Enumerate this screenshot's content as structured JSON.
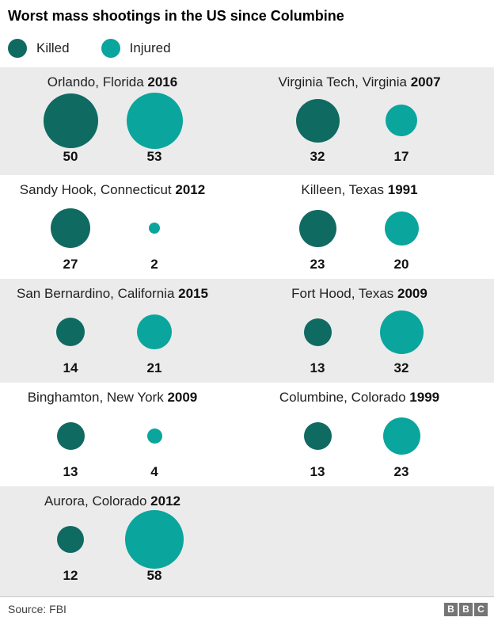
{
  "header": {
    "title": "Worst mass shootings in the US since Columbine"
  },
  "legend": {
    "items": [
      {
        "label": "Killed",
        "color": "#0f6a62"
      },
      {
        "label": "Injured",
        "color": "#0aa59d"
      }
    ]
  },
  "footer": {
    "source": "Source: FBI",
    "logo_letters": [
      "B",
      "B",
      "C"
    ]
  },
  "colors": {
    "killed": "#0f6a62",
    "injured": "#0aa59d",
    "band_gray": "#ebebeb"
  },
  "chart_data": {
    "type": "bubble",
    "title": "Worst mass shootings in the US since Columbine",
    "series_names": [
      "Killed",
      "Injured"
    ],
    "size_encoding": "circle area proportional to value",
    "layout": "two columns, alternating gray/white row bands",
    "events": [
      {
        "location": "Orlando, Florida",
        "year": "2016",
        "killed": 50,
        "injured": 53
      },
      {
        "location": "Virginia Tech, Virginia",
        "year": "2007",
        "killed": 32,
        "injured": 17
      },
      {
        "location": "Sandy Hook, Connecticut",
        "year": "2012",
        "killed": 27,
        "injured": 2
      },
      {
        "location": "Killeen, Texas",
        "year": "1991",
        "killed": 23,
        "injured": 20
      },
      {
        "location": "San Bernardino, California",
        "year": "2015",
        "killed": 14,
        "injured": 21
      },
      {
        "location": "Fort Hood, Texas",
        "year": "2009",
        "killed": 13,
        "injured": 32
      },
      {
        "location": "Binghamton, New York",
        "year": "2009",
        "killed": 13,
        "injured": 4
      },
      {
        "location": "Columbine, Colorado",
        "year": "1999",
        "killed": 13,
        "injured": 23
      },
      {
        "location": "Aurora, Colorado",
        "year": "2012",
        "killed": 12,
        "injured": 58
      }
    ]
  }
}
